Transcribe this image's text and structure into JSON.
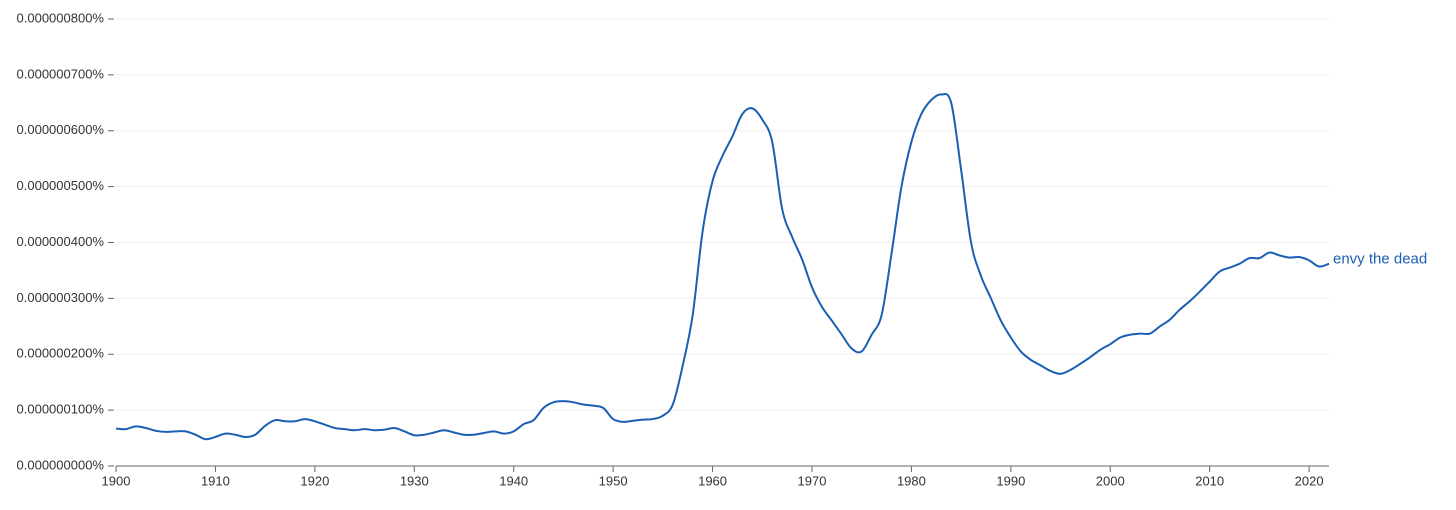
{
  "chart_data": {
    "type": "line",
    "x": [
      1900,
      1901,
      1902,
      1903,
      1904,
      1905,
      1906,
      1907,
      1908,
      1909,
      1910,
      1911,
      1912,
      1913,
      1914,
      1915,
      1916,
      1917,
      1918,
      1919,
      1920,
      1921,
      1922,
      1923,
      1924,
      1925,
      1926,
      1927,
      1928,
      1929,
      1930,
      1931,
      1932,
      1933,
      1934,
      1935,
      1936,
      1937,
      1938,
      1939,
      1940,
      1941,
      1942,
      1943,
      1944,
      1945,
      1946,
      1947,
      1948,
      1949,
      1950,
      1951,
      1952,
      1953,
      1954,
      1955,
      1956,
      1957,
      1958,
      1959,
      1960,
      1961,
      1962,
      1963,
      1964,
      1965,
      1966,
      1967,
      1968,
      1969,
      1970,
      1971,
      1972,
      1973,
      1974,
      1975,
      1976,
      1977,
      1978,
      1979,
      1980,
      1981,
      1982,
      1983,
      1984,
      1985,
      1986,
      1987,
      1988,
      1989,
      1990,
      1991,
      1992,
      1993,
      1994,
      1995,
      1996,
      1997,
      1998,
      1999,
      2000,
      2001,
      2002,
      2003,
      2004,
      2005,
      2006,
      2007,
      2008,
      2009,
      2010,
      2011,
      2012,
      2013,
      2014,
      2015,
      2016,
      2017,
      2018,
      2019,
      2020,
      2021,
      2022
    ],
    "series": [
      {
        "name": "envy the dead",
        "color": "#1a5fb4",
        "values": [
          6.7e-08,
          6.6e-08,
          7.1e-08,
          6.8e-08,
          6.3e-08,
          6.1e-08,
          6.2e-08,
          6.2e-08,
          5.6e-08,
          4.8e-08,
          5.2e-08,
          5.8e-08,
          5.6e-08,
          5.2e-08,
          5.6e-08,
          7.2e-08,
          8.2e-08,
          8e-08,
          8e-08,
          8.4e-08,
          8e-08,
          7.4e-08,
          6.8e-08,
          6.6e-08,
          6.4e-08,
          6.6e-08,
          6.4e-08,
          6.5e-08,
          6.8e-08,
          6.2e-08,
          5.5e-08,
          5.6e-08,
          6e-08,
          6.4e-08,
          6e-08,
          5.6e-08,
          5.6e-08,
          5.9e-08,
          6.2e-08,
          5.8e-08,
          6.2e-08,
          7.5e-08,
          8.2e-08,
          1.04e-07,
          1.14e-07,
          1.16e-07,
          1.14e-07,
          1.1e-07,
          1.08e-07,
          1.04e-07,
          8.4e-08,
          7.9e-08,
          8.1e-08,
          8.3e-08,
          8.4e-08,
          9e-08,
          1.1e-07,
          1.8e-07,
          2.7e-07,
          4.2e-07,
          5.1e-07,
          5.55e-07,
          5.9e-07,
          6.3e-07,
          6.4e-07,
          6.2e-07,
          5.8e-07,
          4.6e-07,
          4.1e-07,
          3.7e-07,
          3.2e-07,
          2.85e-07,
          2.6e-07,
          2.35e-07,
          2.1e-07,
          2.05e-07,
          2.35e-07,
          2.7e-07,
          3.8e-07,
          5e-07,
          5.8e-07,
          6.3e-07,
          6.55e-07,
          6.65e-07,
          6.5e-07,
          5.3e-07,
          4e-07,
          3.4e-07,
          3e-07,
          2.6e-07,
          2.3e-07,
          2.05e-07,
          1.9e-07,
          1.8e-07,
          1.7e-07,
          1.65e-07,
          1.72e-07,
          1.83e-07,
          1.95e-07,
          2.08e-07,
          2.18e-07,
          2.3e-07,
          2.35e-07,
          2.37e-07,
          2.37e-07,
          2.5e-07,
          2.62e-07,
          2.8e-07,
          2.95e-07,
          3.12e-07,
          3.3e-07,
          3.48e-07,
          3.55e-07,
          3.62e-07,
          3.72e-07,
          3.72e-07,
          3.82e-07,
          3.77e-07,
          3.73e-07,
          3.74e-07,
          3.68e-07,
          3.57e-07,
          3.62e-07
        ]
      }
    ],
    "xlim": [
      1900,
      2022
    ],
    "xticks": [
      1900,
      1910,
      1920,
      1930,
      1940,
      1950,
      1960,
      1970,
      1980,
      1990,
      2000,
      2010,
      2020
    ],
    "ylim": [
      0,
      8e-07
    ],
    "yticks": [
      {
        "value": 0,
        "label": "0.000000000%"
      },
      {
        "value": 1e-07,
        "label": "0.000000100%"
      },
      {
        "value": 2e-07,
        "label": "0.000000200%"
      },
      {
        "value": 3e-07,
        "label": "0.000000300%"
      },
      {
        "value": 4e-07,
        "label": "0.000000400%"
      },
      {
        "value": 5e-07,
        "label": "0.000000500%"
      },
      {
        "value": 6e-07,
        "label": "0.000000600%"
      },
      {
        "value": 7e-07,
        "label": "0.000000700%"
      },
      {
        "value": 8e-07,
        "label": "0.000000800%"
      }
    ],
    "grid": true
  }
}
